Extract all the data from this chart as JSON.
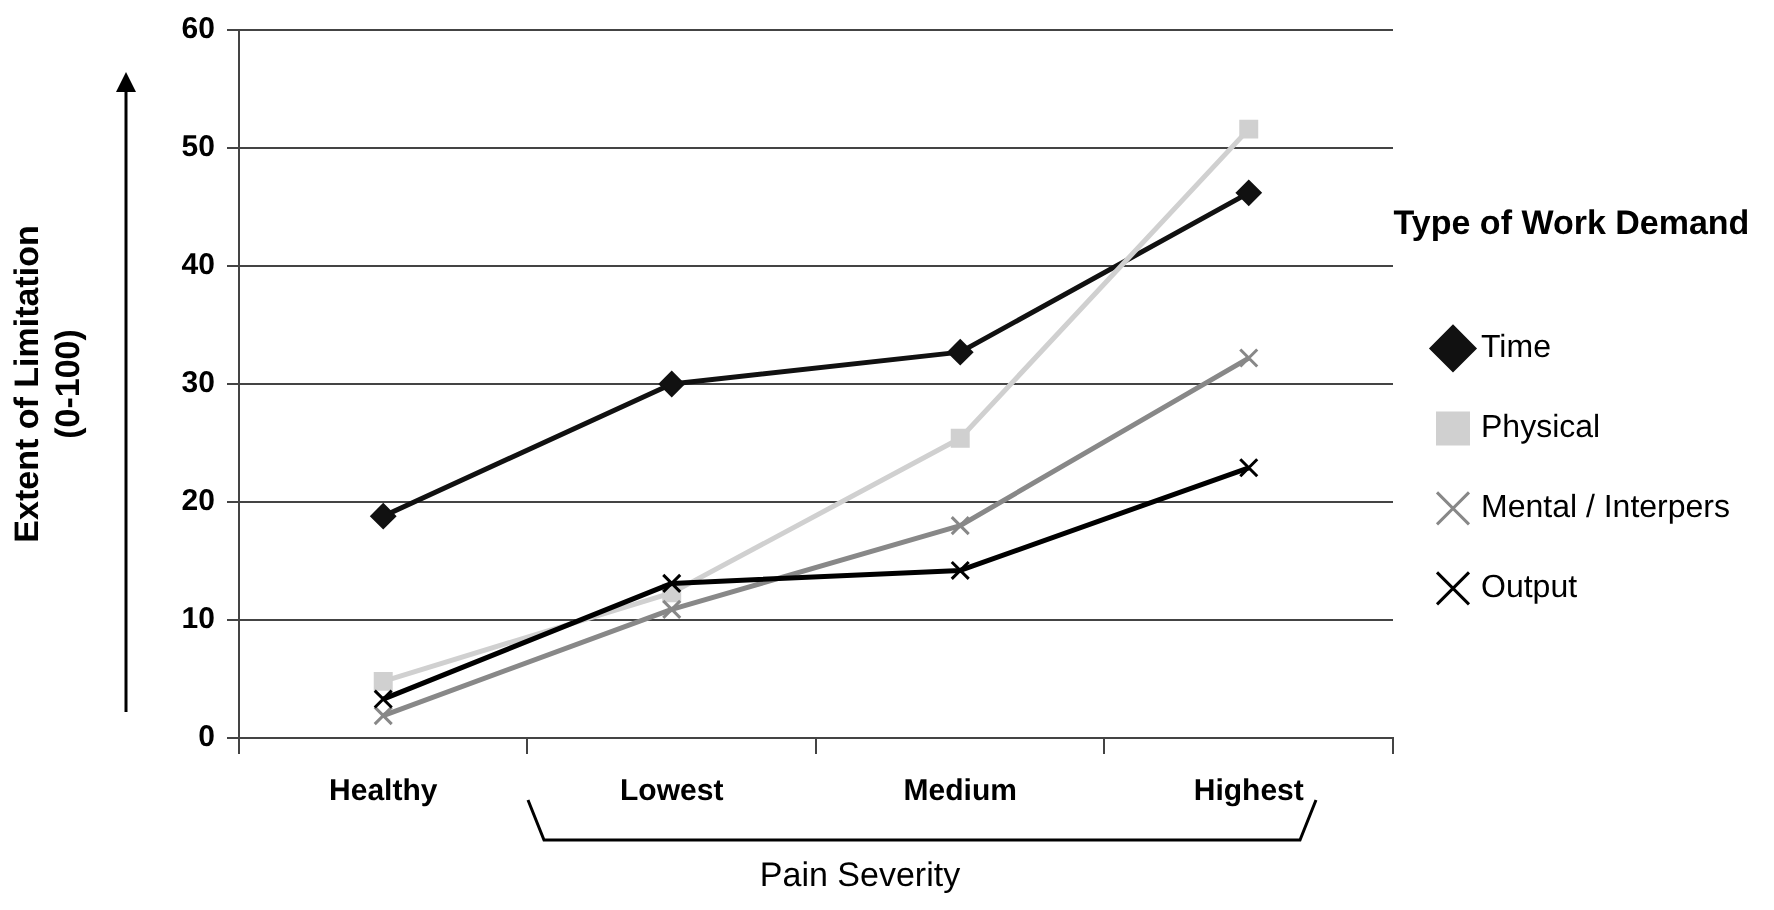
{
  "chart_data": {
    "type": "line",
    "xlabel": "Pain Severity",
    "ylabel": "Extent of Limitation\n(0-100)",
    "legend_title": "Type of Work Demand",
    "categories": [
      "Healthy",
      "Lowest",
      "Medium",
      "Highest"
    ],
    "series": [
      {
        "name": "Time",
        "color": "#111111",
        "marker": "diamond",
        "values": [
          18.8,
          30,
          32.7,
          46.2
        ]
      },
      {
        "name": "Physical",
        "color": "#d0d0d0",
        "marker": "square",
        "values": [
          4.8,
          12.3,
          25.4,
          51.6
        ]
      },
      {
        "name": "Mental / Interpers",
        "color": "#888888",
        "marker": "cross",
        "values": [
          1.9,
          10.9,
          18,
          32.2
        ]
      },
      {
        "name": "Output",
        "color": "#000000",
        "marker": "cross",
        "values": [
          3.3,
          13.1,
          14.2,
          22.9
        ]
      }
    ],
    "ylim": [
      0,
      60
    ],
    "yticks": [
      0,
      10,
      20,
      30,
      40,
      50,
      60
    ],
    "grid": "y",
    "legend": "right",
    "line_style": "solid"
  }
}
